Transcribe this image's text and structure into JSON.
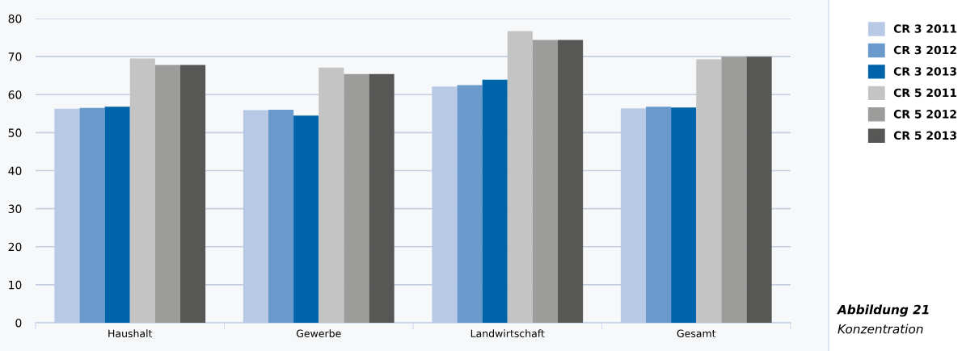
{
  "chart_data": {
    "type": "bar",
    "categories": [
      "Haushalt",
      "Gewerbe",
      "Landwirtschaft",
      "Gesamt"
    ],
    "series": [
      {
        "name": "CR 3 2011",
        "color": "#b8c9e6",
        "values": [
          56.3,
          55.9,
          62.1,
          56.4
        ]
      },
      {
        "name": "CR 3 2012",
        "color": "#6a99cc",
        "values": [
          56.5,
          56.0,
          62.5,
          56.8
        ]
      },
      {
        "name": "CR 3 2013",
        "color": "#0064aa",
        "values": [
          56.8,
          54.5,
          63.9,
          56.6
        ]
      },
      {
        "name": "CR 5 2011",
        "color": "#c4c4c4",
        "values": [
          69.5,
          67.1,
          76.7,
          69.3
        ]
      },
      {
        "name": "CR 5 2012",
        "color": "#9c9c9b",
        "values": [
          67.8,
          65.4,
          74.4,
          70.0
        ]
      },
      {
        "name": "CR 5 2013",
        "color": "#575756",
        "values": [
          67.8,
          65.4,
          74.4,
          70.0
        ]
      }
    ],
    "ylim": [
      0,
      80
    ],
    "yticks": [
      0,
      10,
      20,
      30,
      40,
      50,
      60,
      70,
      80
    ],
    "grid": "y",
    "legend": "right",
    "annotations": [
      "Abbildung 21",
      "Konzentration"
    ]
  }
}
